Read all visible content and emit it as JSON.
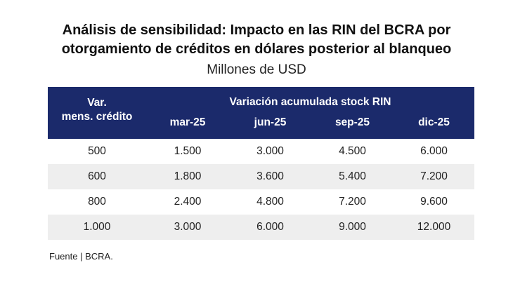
{
  "title": {
    "line1": "Análisis de sensibilidad: Impacto en las RIN del BCRA por",
    "line2": "otorgamiento de créditos en dólares posterior al blanqueo"
  },
  "subtitle": "Millones de USD",
  "table": {
    "row_header": {
      "line1": "Var.",
      "line2": "mens. crédito"
    },
    "group_header": "Variación acumulada stock RIN",
    "columns": [
      "mar-25",
      "jun-25",
      "sep-25",
      "dic-25"
    ],
    "rows": [
      {
        "label": "500",
        "values": [
          "1.500",
          "3.000",
          "4.500",
          "6.000"
        ]
      },
      {
        "label": "600",
        "values": [
          "1.800",
          "3.600",
          "5.400",
          "7.200"
        ]
      },
      {
        "label": "800",
        "values": [
          "2.400",
          "4.800",
          "7.200",
          "9.600"
        ]
      },
      {
        "label": "1.000",
        "values": [
          "3.000",
          "6.000",
          "9.000",
          "12.000"
        ]
      }
    ]
  },
  "source": "Fuente | BCRA.",
  "colors": {
    "header_bg": "#1b2a6b",
    "header_text": "#ffffff",
    "stripe_bg": "#eeeeee"
  }
}
